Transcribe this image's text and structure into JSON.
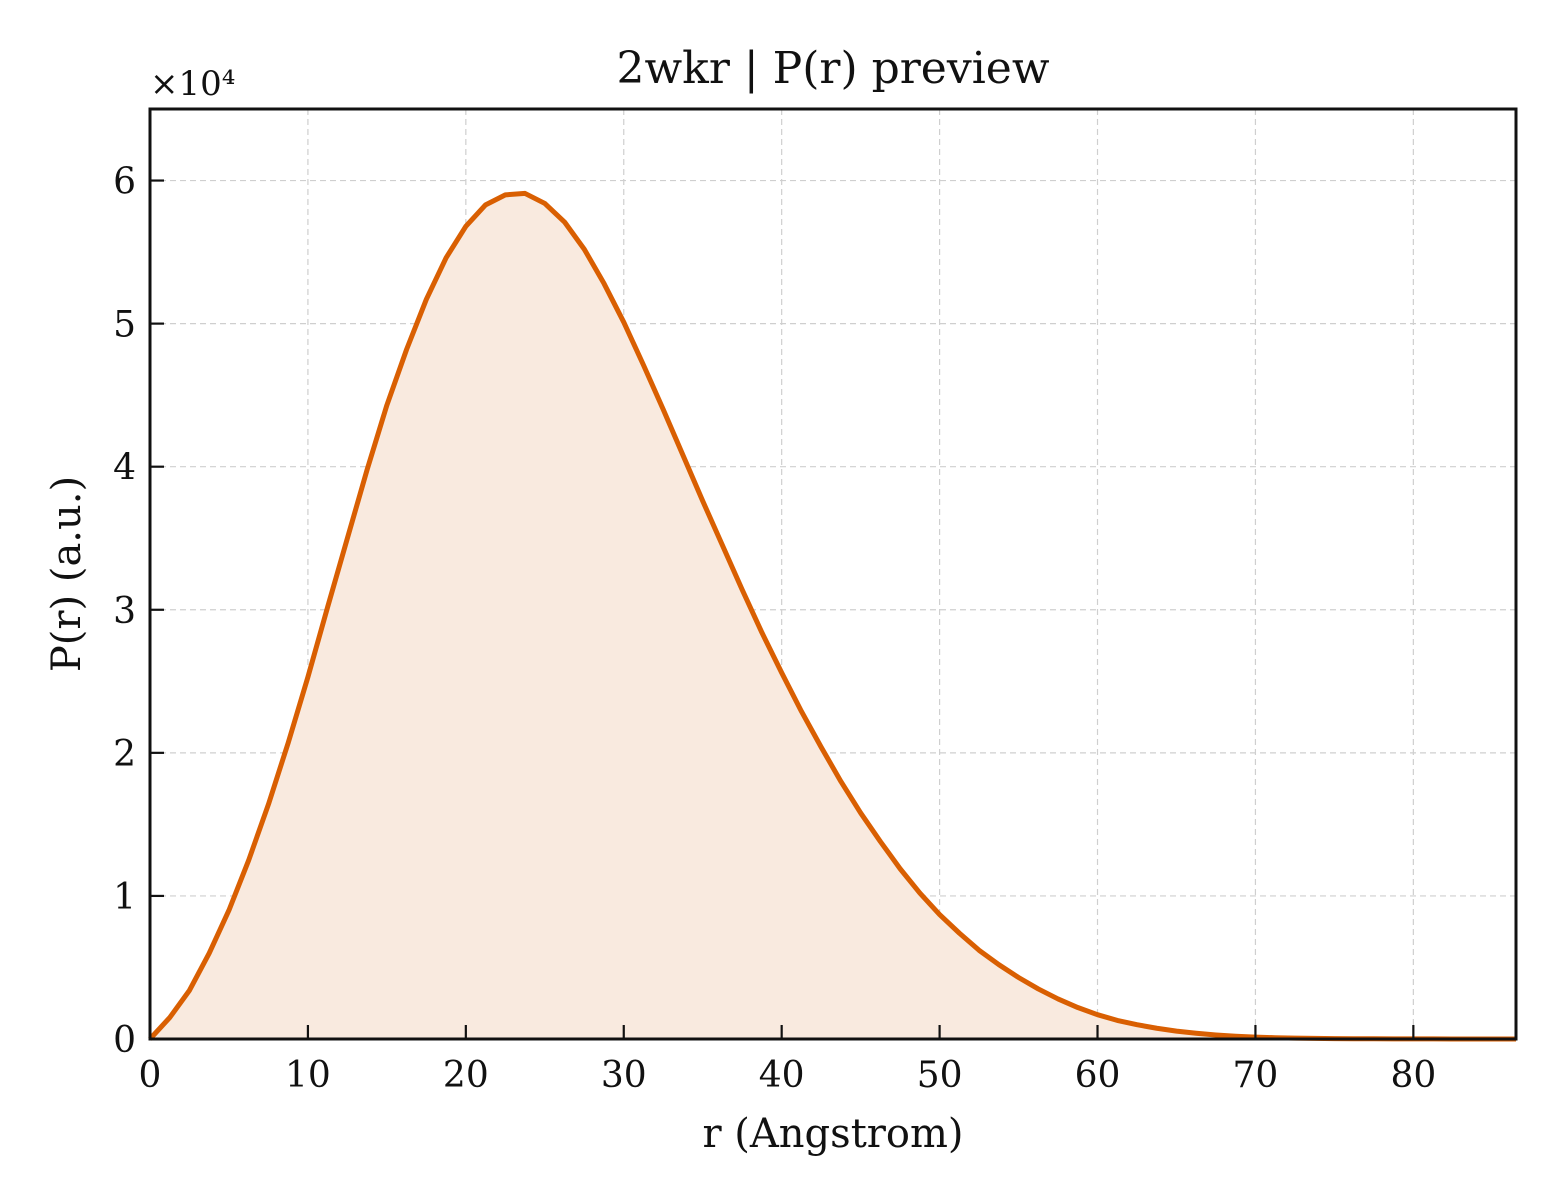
{
  "chart_data": {
    "type": "area",
    "title": "2wkr | P(r) preview",
    "xlabel": "r (Angstrom)",
    "ylabel": "P(r) (a.u.)",
    "y_multiplier_label": "×10⁴",
    "y_scale_factor": 10000,
    "xlim": [
      0,
      86.5
    ],
    "ylim": [
      0,
      65000
    ],
    "xticks": [
      0,
      10,
      20,
      30,
      40,
      50,
      60,
      70,
      80
    ],
    "xtick_labels": [
      "0",
      "10",
      "20",
      "30",
      "40",
      "50",
      "60",
      "70",
      "80"
    ],
    "yticks": [
      0,
      10000,
      20000,
      30000,
      40000,
      50000,
      60000
    ],
    "ytick_labels": [
      "0",
      "1",
      "2",
      "3",
      "4",
      "5",
      "6"
    ],
    "grid": true,
    "legend": "none",
    "colors": {
      "line": "#d95f02",
      "fill": "#f9eadf",
      "axes": "#111111",
      "grid": "#cfcfcf"
    },
    "series": [
      {
        "x": [
          0,
          1.25,
          2.5,
          3.75,
          5,
          6.25,
          7.5,
          8.75,
          10,
          11.25,
          12.5,
          13.75,
          15,
          16.25,
          17.5,
          18.75,
          20,
          21.25,
          22.5,
          23.75,
          25,
          26.25,
          27.5,
          28.75,
          30,
          31.25,
          32.5,
          33.75,
          35,
          36.25,
          37.5,
          38.75,
          40,
          41.25,
          42.5,
          43.75,
          45,
          46.25,
          47.5,
          48.75,
          50,
          51.25,
          52.5,
          53.75,
          55,
          56.25,
          57.5,
          58.75,
          60,
          61.25,
          62.5,
          63.75,
          65,
          66.25,
          67.5,
          68.75,
          70,
          71.25,
          72.5,
          73.75,
          75,
          76.25,
          77.5,
          78.75,
          80,
          81.25,
          82.5,
          83.75,
          85,
          86.5
        ],
        "y": [
          0,
          1500,
          3400,
          6000,
          9000,
          12500,
          16400,
          20700,
          25300,
          30200,
          35000,
          39800,
          44300,
          48200,
          51700,
          54600,
          56800,
          58300,
          59000,
          59100,
          58400,
          57100,
          55200,
          52800,
          50100,
          47100,
          44000,
          40800,
          37600,
          34500,
          31400,
          28400,
          25600,
          22900,
          20400,
          18000,
          15800,
          13800,
          11900,
          10200,
          8700,
          7400,
          6200,
          5200,
          4300,
          3500,
          2800,
          2200,
          1700,
          1300,
          1000,
          750,
          550,
          400,
          280,
          190,
          130,
          90,
          60,
          40,
          28,
          20,
          14,
          10,
          7,
          5,
          3,
          2,
          1,
          0
        ]
      }
    ]
  }
}
